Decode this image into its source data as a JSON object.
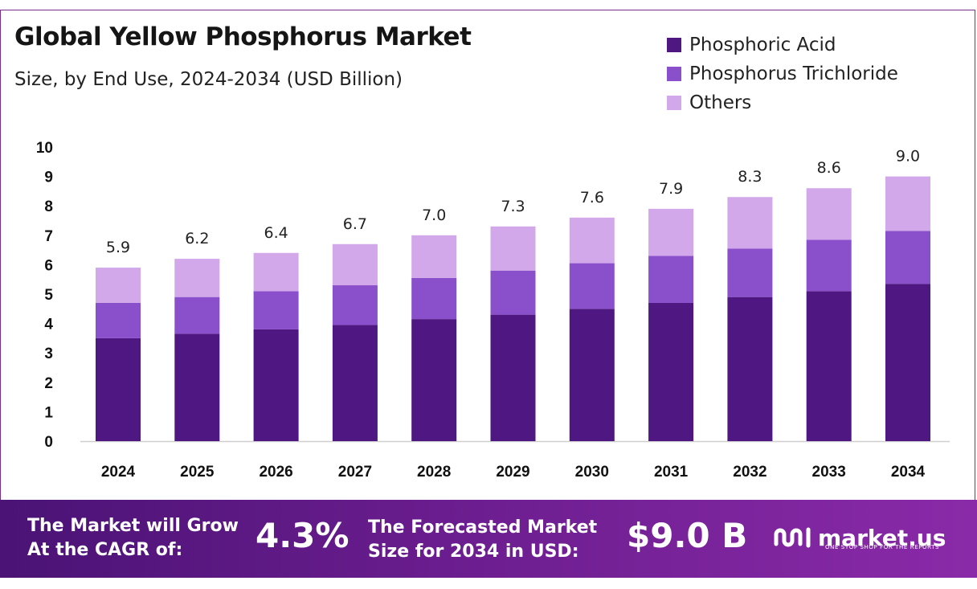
{
  "header": {
    "title": "Global Yellow Phosphorus Market",
    "subtitle": "Size, by End Use, 2024-2034 (USD Billion)"
  },
  "legend": [
    {
      "label": "Phosphoric Acid",
      "color": "#4e1781"
    },
    {
      "label": "Phosphorus Trichloride",
      "color": "#8a4fcb"
    },
    {
      "label": "Others",
      "color": "#d2a8ea"
    }
  ],
  "chart_data": {
    "type": "bar",
    "stacked": true,
    "categories": [
      "2024",
      "2025",
      "2026",
      "2027",
      "2028",
      "2029",
      "2030",
      "2031",
      "2032",
      "2033",
      "2034"
    ],
    "series": [
      {
        "name": "Phosphoric Acid",
        "values": [
          3.5,
          3.65,
          3.8,
          3.95,
          4.15,
          4.3,
          4.5,
          4.7,
          4.9,
          5.1,
          5.35
        ]
      },
      {
        "name": "Phosphorus Trichloride",
        "values": [
          1.2,
          1.25,
          1.3,
          1.35,
          1.4,
          1.5,
          1.55,
          1.6,
          1.65,
          1.75,
          1.8
        ]
      },
      {
        "name": "Others",
        "values": [
          1.2,
          1.3,
          1.3,
          1.4,
          1.45,
          1.5,
          1.55,
          1.6,
          1.75,
          1.75,
          1.85
        ]
      }
    ],
    "totals": [
      "5.9",
      "6.2",
      "6.4",
      "6.7",
      "7.0",
      "7.3",
      "7.6",
      "7.9",
      "8.3",
      "8.6",
      "9.0"
    ],
    "total_values": [
      5.9,
      6.2,
      6.4,
      6.7,
      7.0,
      7.3,
      7.6,
      7.9,
      8.3,
      8.6,
      9.0
    ],
    "yticks": [
      "0",
      "1",
      "2",
      "3",
      "4",
      "5",
      "6",
      "7",
      "8",
      "9",
      "10"
    ],
    "ylim": [
      0,
      10
    ],
    "grid": false,
    "legend_position": "top-right"
  },
  "banner": {
    "cagr_label_line1": "The Market will Grow",
    "cagr_label_line2": "At the CAGR of:",
    "cagr_value": "4.3%",
    "forecast_label_line1": "The Forecasted Market",
    "forecast_label_line2": "Size for 2034 in USD:",
    "forecast_value": "$9.0 B",
    "logo_text": "market.us",
    "logo_tagline": "ONE STOP SHOP FOR THE REPORTS"
  }
}
